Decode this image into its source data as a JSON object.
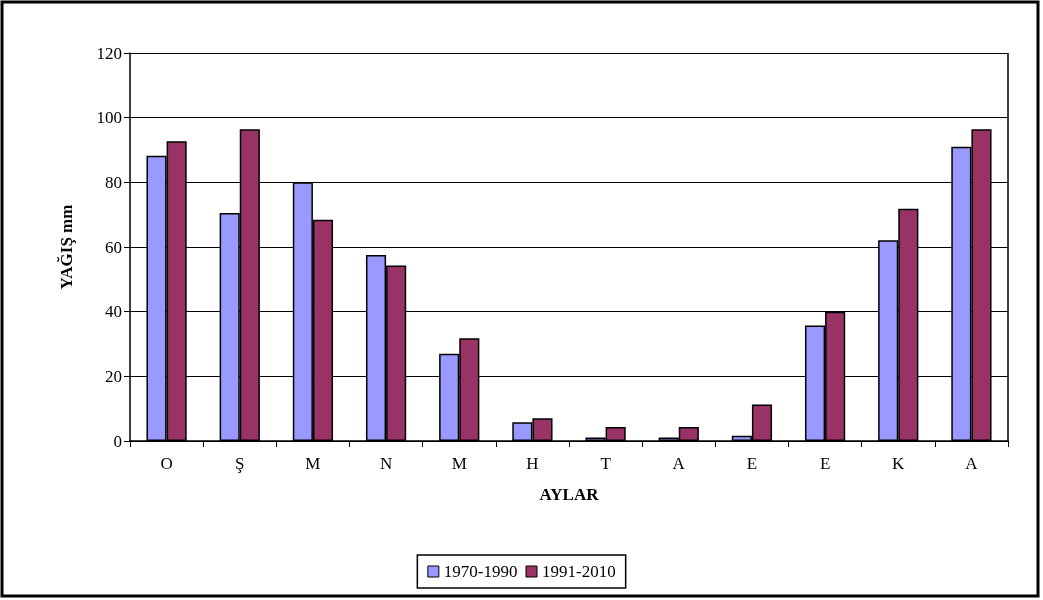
{
  "chart_data": {
    "type": "bar",
    "xlabel": "AYLAR",
    "ylabel": "YAĞIŞ mm",
    "categories": [
      "O",
      "Ş",
      "M",
      "N",
      "M",
      "H",
      "T",
      "A",
      "E",
      "E",
      "K",
      "A"
    ],
    "series": [
      {
        "name": "1970-1990",
        "color": "#9999ff",
        "values": [
          88.2,
          70.5,
          80,
          57.5,
          27,
          5.8,
          1.1,
          1.1,
          1.6,
          35.7,
          62.1,
          91
        ]
      },
      {
        "name": "1991-2010",
        "color": "#993366",
        "values": [
          92.7,
          96.4,
          68.4,
          54.3,
          31.8,
          7,
          4.3,
          4.3,
          11.3,
          40,
          71.8,
          96.4
        ]
      }
    ],
    "ylim": [
      0,
      120
    ],
    "yticks": [
      0,
      20,
      40,
      60,
      80,
      100,
      120
    ],
    "grid": "y",
    "legend": "bottom"
  }
}
